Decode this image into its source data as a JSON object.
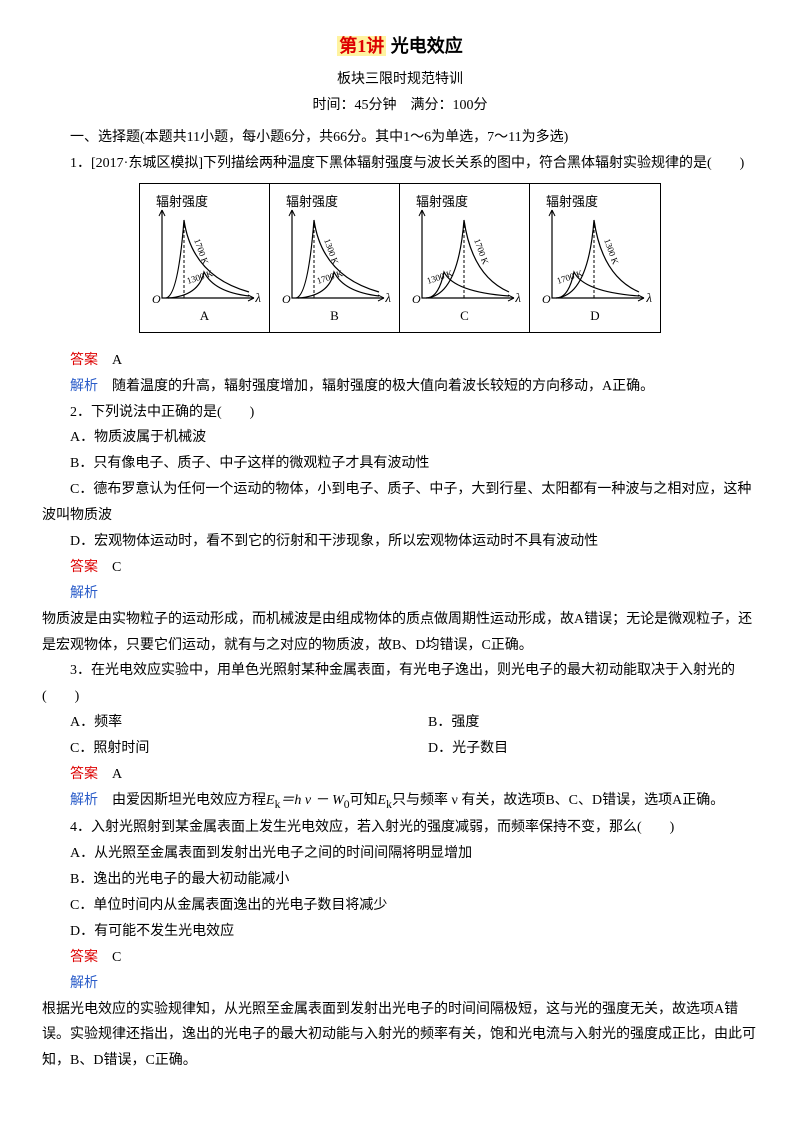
{
  "title_prefix": "第1讲",
  "title_main": "光电效应",
  "sub": "板块三限时规范特训",
  "sub2": "时间：45分钟　满分：100分",
  "sec1": "一、选择题(本题共11小题，每小题6分，共66分。其中1～6为单选，7～11为多选)",
  "q1": "1．[2017·东城区模拟]下列描绘两种温度下黑体辐射强度与波长关系的图中，符合黑体辐射实验规律的是(　　)",
  "fig": {
    "ylab": "辐射强度",
    "xlab": "λ",
    "o": "O",
    "panels": [
      {
        "label": "A",
        "c1": "1700 K",
        "c2": "1300 K",
        "c1Big": true,
        "c1Left": true
      },
      {
        "label": "B",
        "c1": "1300 K",
        "c2": "1700 K",
        "c1Big": true,
        "c1Left": true
      },
      {
        "label": "C",
        "c1": "1700 K",
        "c2": "1300 K",
        "c1Big": true,
        "c1Left": false
      },
      {
        "label": "D",
        "c1": "1300 K",
        "c2": "1700 K",
        "c1Big": true,
        "c1Left": false
      }
    ]
  },
  "a1_label": "答案",
  "a1": "A",
  "e1_label": "解析",
  "e1": "随着温度的升高，辐射强度增加，辐射强度的极大值向着波长较短的方向移动，A正确。",
  "q2": "2．下列说法中正确的是(　　)",
  "q2a": "A．物质波属于机械波",
  "q2b": "B．只有像电子、质子、中子这样的微观粒子才具有波动性",
  "q2c": "C．德布罗意认为任何一个运动的物体，小到电子、质子、中子，大到行星、太阳都有一种波与之相对应，这种波叫物质波",
  "q2d": "D．宏观物体运动时，看不到它的衍射和干涉现象，所以宏观物体运动时不具有波动性",
  "a2_label": "答案",
  "a2": "C",
  "e2_label": "解析",
  "e2": "物质波是由实物粒子的运动形成，而机械波是由组成物体的质点做周期性运动形成，故A错误；无论是微观粒子，还是宏观物体，只要它们运动，就有与之对应的物质波，故B、D均错误，C正确。",
  "q3": "3．在光电效应实验中，用单色光照射某种金属表面，有光电子逸出，则光电子的最大初动能取决于入射光的 (　　)",
  "q3a": "A．频率",
  "q3b": "B．强度",
  "q3c": "C．照射时间",
  "q3d": "D．光子数目",
  "a3_label": "答案",
  "a3": "A",
  "e3_label": "解析",
  "e3a": "由爱因斯坦光电效应方程",
  "e3b": "可知",
  "e3c": "只与频率 ν 有关，故选项B、C、D错误，选项A正确。",
  "eq1": "E",
  "eq1s": "k",
  "eq2": "＝h ν － W",
  "eq3": "0",
  "eq4": "E",
  "eq4s": "k",
  "q4": "4．入射光照射到某金属表面上发生光电效应，若入射光的强度减弱，而频率保持不变，那么(　　)",
  "q4a": "A．从光照至金属表面到发射出光电子之间的时间间隔将明显增加",
  "q4b": "B．逸出的光电子的最大初动能减小",
  "q4c": "C．单位时间内从金属表面逸出的光电子数目将减少",
  "q4d": "D．有可能不发生光电效应",
  "a4_label": "答案",
  "a4": "C",
  "e4_label": "解析",
  "e4": "根据光电效应的实验规律知，从光照至金属表面到发射出光电子的时间间隔极短，这与光的强度无关，故选项A错误。实验规律还指出，逸出的光电子的最大初动能与入射光的频率有关，饱和光电流与入射光的强度成正比，由此可知，B、D错误，C正确。"
}
